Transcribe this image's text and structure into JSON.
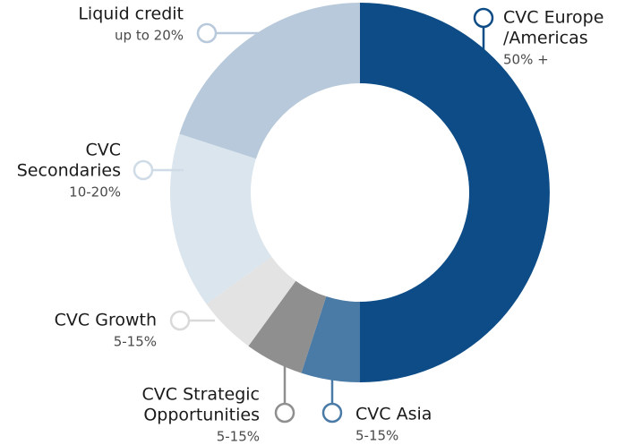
{
  "chart_data": {
    "type": "donut",
    "categories": [
      [
        "CVC Europe",
        "/Americas"
      ],
      [
        "CVC Asia"
      ],
      [
        "CVC Strategic",
        "Opportunities"
      ],
      [
        "CVC Growth"
      ],
      [
        "CVC",
        "Secondaries"
      ],
      [
        "Liquid credit"
      ]
    ],
    "ranges": [
      "50% +",
      "5-15%",
      "5-15%",
      "5-15%",
      "10-20%",
      "up to 20%"
    ],
    "values": [
      50,
      5,
      5,
      5,
      15,
      20
    ],
    "colors": [
      "#0d4c86",
      "#4a7aa6",
      "#8f8f8f",
      "#e3e3e3",
      "#dbe5ee",
      "#b7c9da"
    ]
  }
}
